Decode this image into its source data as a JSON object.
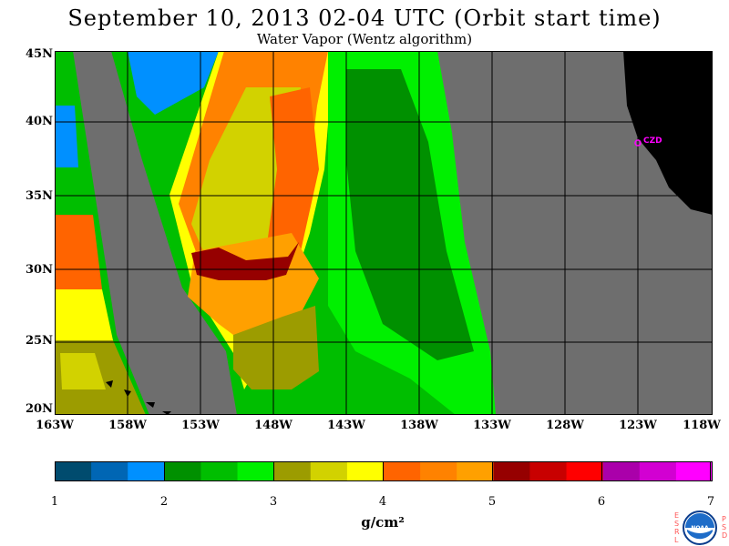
{
  "header": {
    "title": "September 10, 2013  02-04 UTC  (Orbit start time)",
    "subtitle": "Water Vapor (Wentz algorithm)"
  },
  "map": {
    "lat_labels": [
      "45N",
      "40N",
      "35N",
      "30N",
      "25N",
      "20N"
    ],
    "lon_labels": [
      "163W",
      "158W",
      "153W",
      "148W",
      "143W",
      "138W",
      "133W",
      "128W",
      "123W",
      "118W"
    ],
    "station_label": "CZD",
    "land_color": "#000000",
    "nodata_color": "#6e6e6e",
    "station_color": "#ff00ff"
  },
  "colorbar": {
    "tick_labels": [
      "1",
      "2",
      "3",
      "4",
      "5",
      "6",
      "7"
    ],
    "units": "g/cm²",
    "colors": [
      "#004b6e",
      "#0066b4",
      "#0090ff",
      "#009000",
      "#00be00",
      "#00f000",
      "#9c9c00",
      "#d2d200",
      "#ffff00",
      "#ff6400",
      "#ff8200",
      "#ffa000",
      "#960000",
      "#c80000",
      "#ff0000",
      "#aa00aa",
      "#d200d2",
      "#ff00ff"
    ]
  },
  "logo": {
    "left_letters": "ESRL",
    "right_letters": "PSD",
    "text": "NOAA"
  }
}
